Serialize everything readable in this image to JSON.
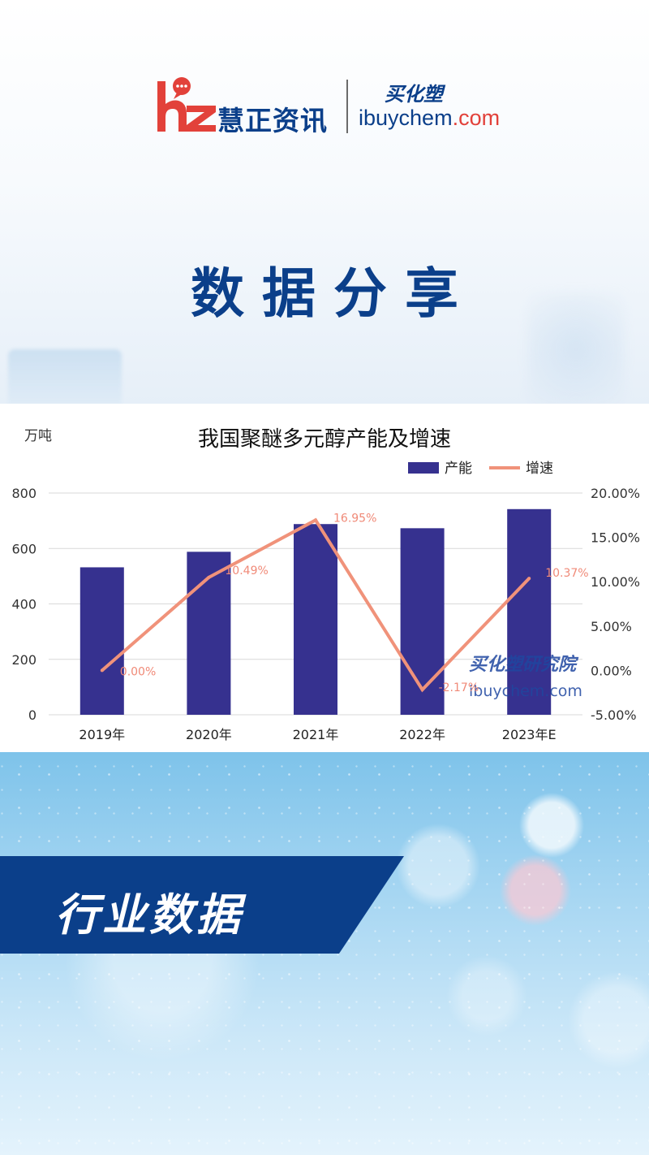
{
  "logo": {
    "name_cn": "慧正资讯",
    "brand_cn": "买化塑",
    "url_main": "ibuychem",
    "url_tld": ".com"
  },
  "page_title": "数据分享",
  "banner": {
    "text": "行业数据"
  },
  "colors": {
    "primary_blue": "#0b3f8a",
    "logo_red": "#e2413a",
    "bar": "#36318f",
    "line": "#f0927a"
  },
  "chart_data": {
    "type": "bar",
    "title": "我国聚醚多元醇产能及增速",
    "ylabel_left": "万吨",
    "categories": [
      "2019年",
      "2020年",
      "2021年",
      "2022年",
      "2023年E"
    ],
    "series": [
      {
        "name": "产能",
        "type": "bar",
        "axis": "left",
        "values": [
          532,
          588,
          688,
          673,
          742
        ]
      },
      {
        "name": "增速",
        "type": "line",
        "axis": "right",
        "values": [
          0.0,
          10.49,
          16.95,
          -2.17,
          10.37
        ],
        "labels": [
          "0.00%",
          "10.49%",
          "16.95%",
          "-2.17%",
          "10.37%"
        ]
      }
    ],
    "ylim_left": [
      0,
      800
    ],
    "yticks_left": [
      "0",
      "200",
      "400",
      "600",
      "800"
    ],
    "ylim_right": [
      -5,
      20
    ],
    "yticks_right": [
      "-5.00%",
      "0.00%",
      "5.00%",
      "10.00%",
      "15.00%",
      "20.00%"
    ],
    "legend_position": "top-right",
    "grid": true,
    "watermark_cn": "买化塑研究院",
    "watermark_url": "ibuychem.com"
  }
}
